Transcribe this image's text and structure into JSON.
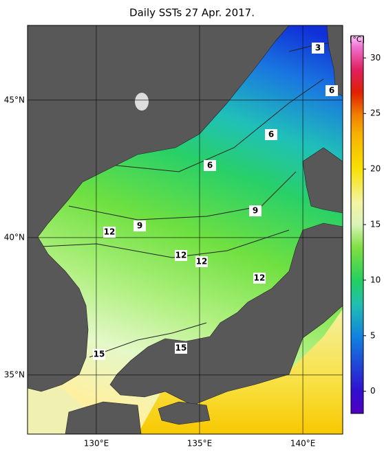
{
  "title": "Daily SSTs 27 Apr. 2017.",
  "map": {
    "lon_range": [
      126.67,
      141.93
    ],
    "lat_range": [
      32.85,
      47.72
    ],
    "lon_ticks": [
      {
        "value": 130,
        "label": "130°E"
      },
      {
        "value": 135,
        "label": "135°E"
      },
      {
        "value": 140,
        "label": "140°E"
      }
    ],
    "lat_ticks": [
      {
        "value": 45,
        "label": "45°N"
      },
      {
        "value": 40,
        "label": "40°N"
      },
      {
        "value": 35,
        "label": "35°N"
      }
    ],
    "contour_labels": [
      3,
      6,
      6,
      6,
      9,
      9,
      12,
      12,
      12,
      12,
      15,
      15
    ]
  },
  "colorbar": {
    "unit": "[°C]",
    "range": [
      -2,
      32
    ],
    "ticks": [
      0,
      5,
      10,
      15,
      20,
      25,
      30
    ]
  }
}
